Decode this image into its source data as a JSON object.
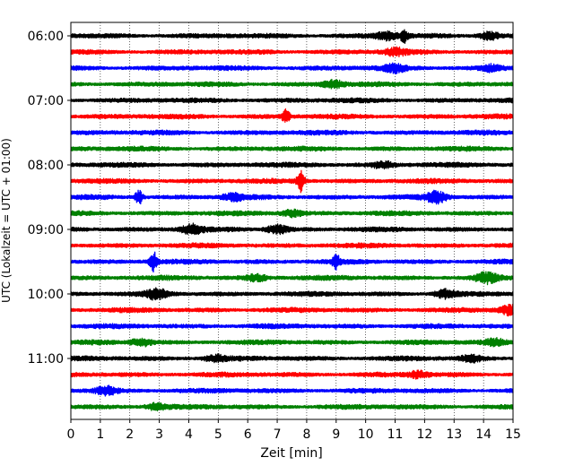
{
  "chart_data": {
    "type": "line",
    "title": "",
    "xlabel": "Zeit  [min]",
    "ylabel": "UTC (Lokalzeit = UTC + 01:00)",
    "xlim": [
      0,
      15
    ],
    "xticks": [
      0,
      1,
      2,
      3,
      4,
      5,
      6,
      7,
      8,
      9,
      10,
      11,
      12,
      13,
      14,
      15
    ],
    "x_grid": "dotted",
    "y_tick_labels": [
      "06:00",
      "07:00",
      "08:00",
      "09:00",
      "10:00",
      "11:00"
    ],
    "y_tick_trace_index": [
      0,
      4,
      8,
      12,
      16,
      20
    ],
    "trace_interval_min": 15,
    "trace_colors": [
      "#000000",
      "#ff0000",
      "#0000ff",
      "#008000"
    ],
    "series": [
      {
        "start": "06:00",
        "color": "#000000",
        "events": [
          {
            "t": 11.3,
            "amp": 1.6
          },
          {
            "t": 10.7,
            "amp": 1.0
          },
          {
            "t": 14.2,
            "amp": 1.0
          }
        ]
      },
      {
        "start": "06:15",
        "color": "#ff0000",
        "events": [
          {
            "t": 11.0,
            "amp": 0.9
          }
        ]
      },
      {
        "start": "06:30",
        "color": "#0000ff",
        "events": [
          {
            "t": 11.0,
            "amp": 0.9
          },
          {
            "t": 14.3,
            "amp": 0.8
          }
        ]
      },
      {
        "start": "06:45",
        "color": "#008000",
        "events": [
          {
            "t": 8.9,
            "amp": 0.9
          }
        ]
      },
      {
        "start": "07:00",
        "color": "#000000",
        "events": []
      },
      {
        "start": "07:15",
        "color": "#ff0000",
        "events": [
          {
            "t": 7.3,
            "amp": 1.8
          }
        ]
      },
      {
        "start": "07:30",
        "color": "#0000ff",
        "events": []
      },
      {
        "start": "07:45",
        "color": "#008000",
        "events": []
      },
      {
        "start": "08:00",
        "color": "#000000",
        "events": [
          {
            "t": 10.6,
            "amp": 0.8
          }
        ]
      },
      {
        "start": "08:15",
        "color": "#ff0000",
        "events": [
          {
            "t": 7.8,
            "amp": 2.8
          }
        ]
      },
      {
        "start": "08:30",
        "color": "#0000ff",
        "events": [
          {
            "t": 2.3,
            "amp": 2.0
          },
          {
            "t": 12.4,
            "amp": 1.4
          },
          {
            "t": 5.5,
            "amp": 0.8
          }
        ]
      },
      {
        "start": "08:45",
        "color": "#008000",
        "events": [
          {
            "t": 7.5,
            "amp": 0.8
          }
        ]
      },
      {
        "start": "09:00",
        "color": "#000000",
        "events": [
          {
            "t": 4.1,
            "amp": 1.2
          },
          {
            "t": 7.0,
            "amp": 1.1
          }
        ]
      },
      {
        "start": "09:15",
        "color": "#ff0000",
        "events": []
      },
      {
        "start": "09:30",
        "color": "#0000ff",
        "events": [
          {
            "t": 2.8,
            "amp": 2.6
          },
          {
            "t": 9.0,
            "amp": 1.8
          }
        ]
      },
      {
        "start": "09:45",
        "color": "#008000",
        "events": [
          {
            "t": 14.1,
            "amp": 1.2
          },
          {
            "t": 6.3,
            "amp": 0.8
          }
        ]
      },
      {
        "start": "10:00",
        "color": "#000000",
        "events": [
          {
            "t": 2.9,
            "amp": 1.2
          },
          {
            "t": 12.7,
            "amp": 1.0
          }
        ]
      },
      {
        "start": "10:15",
        "color": "#ff0000",
        "events": [
          {
            "t": 14.9,
            "amp": 1.3
          }
        ]
      },
      {
        "start": "10:30",
        "color": "#0000ff",
        "events": []
      },
      {
        "start": "10:45",
        "color": "#008000",
        "events": [
          {
            "t": 2.4,
            "amp": 0.9
          },
          {
            "t": 14.4,
            "amp": 0.8
          }
        ]
      },
      {
        "start": "11:00",
        "color": "#000000",
        "events": [
          {
            "t": 4.9,
            "amp": 0.8
          },
          {
            "t": 13.6,
            "amp": 0.7
          }
        ]
      },
      {
        "start": "11:15",
        "color": "#ff0000",
        "events": [
          {
            "t": 11.8,
            "amp": 0.8
          }
        ]
      },
      {
        "start": "11:30",
        "color": "#0000ff",
        "events": [
          {
            "t": 1.2,
            "amp": 1.1
          }
        ]
      },
      {
        "start": "11:45",
        "color": "#008000",
        "events": [
          {
            "t": 2.9,
            "amp": 0.8
          }
        ]
      }
    ]
  }
}
